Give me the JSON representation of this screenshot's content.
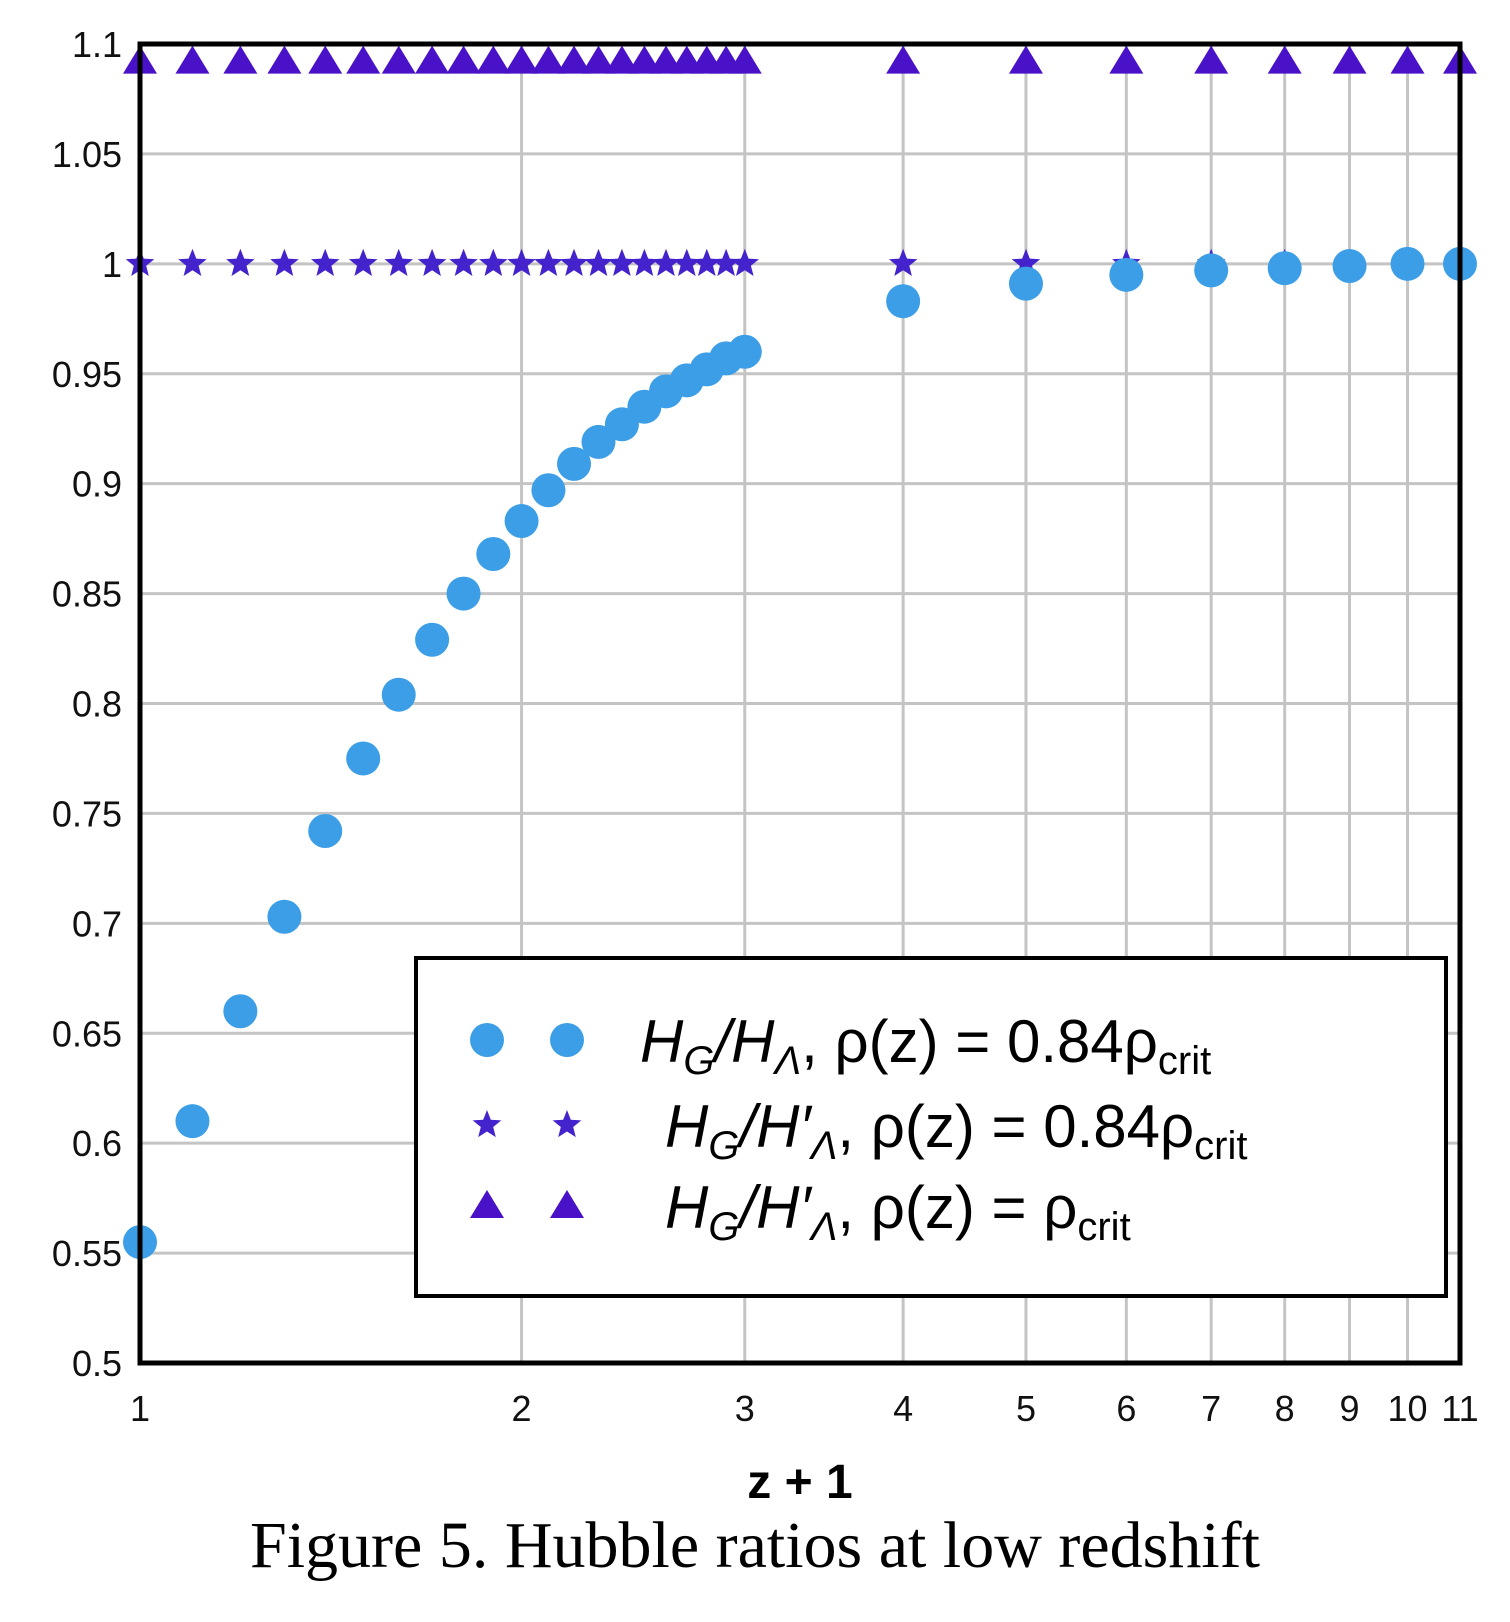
{
  "chart_data": {
    "type": "scatter",
    "x_scale": "log",
    "xlabel": "z + 1",
    "ylabel": "",
    "xlim": [
      1,
      11
    ],
    "ylim": [
      0.5,
      1.1
    ],
    "x_ticks": [
      1,
      2,
      3,
      4,
      5,
      6,
      7,
      8,
      9,
      10,
      11
    ],
    "x_tick_labels": [
      "1",
      "2",
      "3",
      "4",
      "5",
      "6",
      "7",
      "8",
      "9",
      "10",
      "11"
    ],
    "y_ticks": [
      0.5,
      0.55,
      0.6,
      0.65,
      0.7,
      0.75,
      0.8,
      0.85,
      0.9,
      0.95,
      1.0,
      1.05,
      1.1
    ],
    "y_tick_labels": [
      "0.5",
      "0.55",
      "0.6",
      "0.65",
      "0.7",
      "0.75",
      "0.8",
      "0.85",
      "0.9",
      "0.95",
      "1",
      "1.05",
      "1.1"
    ],
    "grid": true,
    "legend_position": "lower-right",
    "x": [
      1.0,
      1.1,
      1.2,
      1.3,
      1.4,
      1.5,
      1.6,
      1.7,
      1.8,
      1.9,
      2.0,
      2.1,
      2.2,
      2.3,
      2.4,
      2.5,
      2.6,
      2.7,
      2.8,
      2.9,
      3.0,
      4,
      5,
      6,
      7,
      8,
      9,
      10,
      11
    ],
    "series": [
      {
        "name": "HG/HΛ, ρ(z) = 0.84ρcrit",
        "marker": "circle",
        "color": "#3b9ee6",
        "values": [
          0.555,
          0.61,
          0.66,
          0.703,
          0.742,
          0.775,
          0.804,
          0.829,
          0.85,
          0.868,
          0.883,
          0.897,
          0.909,
          0.919,
          0.927,
          0.935,
          0.942,
          0.947,
          0.952,
          0.957,
          0.96,
          0.983,
          0.991,
          0.995,
          0.997,
          0.998,
          0.999,
          1.0,
          1.0
        ]
      },
      {
        "name": "HG/H'Λ, ρ(z) = 0.84ρcrit",
        "marker": "star",
        "color": "#4422cc",
        "values": [
          1,
          1,
          1,
          1,
          1,
          1,
          1,
          1,
          1,
          1,
          1,
          1,
          1,
          1,
          1,
          1,
          1,
          1,
          1,
          1,
          1,
          1,
          1,
          1,
          1,
          1,
          1,
          1,
          1
        ]
      },
      {
        "name": "HG/H'Λ, ρ(z) = ρcrit",
        "marker": "triangle",
        "color": "#4a12c8",
        "values": [
          1.092,
          1.092,
          1.092,
          1.092,
          1.092,
          1.092,
          1.092,
          1.092,
          1.092,
          1.092,
          1.092,
          1.092,
          1.092,
          1.092,
          1.092,
          1.092,
          1.092,
          1.092,
          1.092,
          1.092,
          1.092,
          1.092,
          1.092,
          1.092,
          1.092,
          1.092,
          1.092,
          1.092,
          1.092
        ]
      }
    ],
    "legend": [
      {
        "H": "H",
        "sub1": "G",
        "mid": "/H",
        "prime": "",
        "sub2": "Λ",
        "eq": ",  ρ(z) = 0.84ρ",
        "sub3": "crit"
      },
      {
        "H": "H",
        "sub1": "G",
        "mid": "/H",
        "prime": "′",
        "sub2": "Λ",
        "eq": ",  ρ(z) = 0.84ρ",
        "sub3": "crit"
      },
      {
        "H": "H",
        "sub1": "G",
        "mid": "/H",
        "prime": "′",
        "sub2": "Λ",
        "eq": ",  ρ(z) = ρ",
        "sub3": "crit"
      }
    ]
  },
  "caption": "Figure 5.  Hubble ratios at low redshift"
}
